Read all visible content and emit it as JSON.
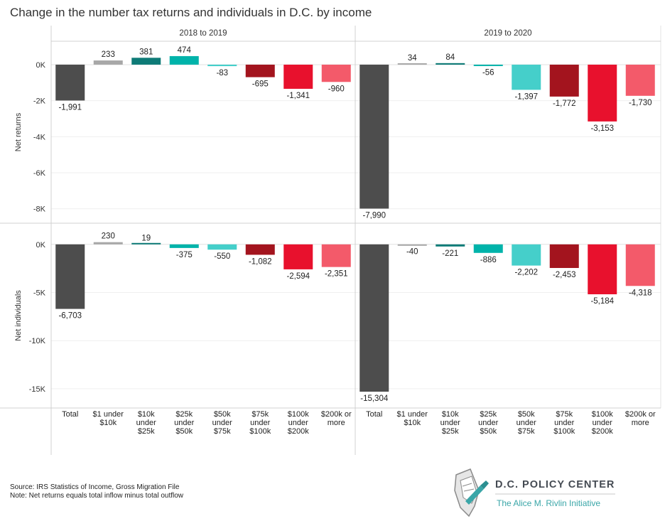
{
  "chart_data": {
    "type": "bar",
    "title": "Change in the number tax returns and individuals in D.C. by income",
    "categories": [
      "Total",
      "$1 under $10k",
      "$10k under $25k",
      "$25k under $50k",
      "$50k under $75k",
      "$75k under $100k",
      "$100k under $200k",
      "$200k or more"
    ],
    "category_lines": [
      [
        "Total"
      ],
      [
        "$1 under",
        "$10k"
      ],
      [
        "$10k",
        "under",
        "$25k"
      ],
      [
        "$25k",
        "under",
        "$50k"
      ],
      [
        "$50k",
        "under",
        "$75k"
      ],
      [
        "$75k",
        "under",
        "$100k"
      ],
      [
        "$100k",
        "under",
        "$200k"
      ],
      [
        "$200k or",
        "more"
      ]
    ],
    "colors": [
      "#4d4d4d",
      "#a8a8a8",
      "#0e7b77",
      "#00b3aa",
      "#45cfca",
      "#a3141e",
      "#e8112d",
      "#f35a6a"
    ],
    "columns": [
      "2018 to 2019",
      "2019 to 2020"
    ],
    "rows": [
      {
        "ylabel": "Net returns",
        "ylim": [
          -8800,
          1300
        ],
        "ticks": [
          0,
          -2000,
          -4000,
          -6000,
          -8000
        ],
        "tick_labels": [
          "0K",
          "-2K",
          "-4K",
          "-6K",
          "-8K"
        ],
        "series": [
          {
            "name": "2018 to 2019",
            "values": [
              -1991,
              233,
              381,
              474,
              -83,
              -695,
              -1341,
              -960
            ],
            "labels": [
              "-1,991",
              "233",
              "381",
              "474",
              "-83",
              "-695",
              "-1,341",
              "-960"
            ]
          },
          {
            "name": "2019 to 2020",
            "values": [
              -7990,
              34,
              84,
              -56,
              -1397,
              -1772,
              -3153,
              -1730
            ],
            "labels": [
              "-7,990",
              "34",
              "84",
              "-56",
              "-1,397",
              "-1,772",
              "-3,153",
              "-1,730"
            ]
          }
        ]
      },
      {
        "ylabel": "Net individuals",
        "ylim": [
          -17000,
          2200
        ],
        "ticks": [
          0,
          -5000,
          -10000,
          -15000
        ],
        "tick_labels": [
          "0K",
          "-5K",
          "-10K",
          "-15K"
        ],
        "series": [
          {
            "name": "2018 to 2019",
            "values": [
              -6703,
              230,
              19,
              -375,
              -550,
              -1082,
              -2594,
              -2351
            ],
            "labels": [
              "-6,703",
              "230",
              "19",
              "-375",
              "-550",
              "-1,082",
              "-2,594",
              "-2,351"
            ]
          },
          {
            "name": "2019 to 2020",
            "values": [
              -15304,
              -40,
              -221,
              -886,
              -2202,
              -2453,
              -5184,
              -4318
            ],
            "labels": [
              "-15,304",
              "-40",
              "-221",
              "-886",
              "-2,202",
              "-2,453",
              "-5,184",
              "-4,318"
            ]
          }
        ]
      }
    ],
    "grid": true,
    "legend": "none"
  },
  "footer": {
    "source": "Source: IRS Statistics of Income, Gross Migration File",
    "note": "Note: Net returns equals total inflow minus total outflow"
  },
  "logo": {
    "name": "D.C. POLICY CENTER",
    "subtitle": "The Alice M. Rivlin Initiative"
  }
}
